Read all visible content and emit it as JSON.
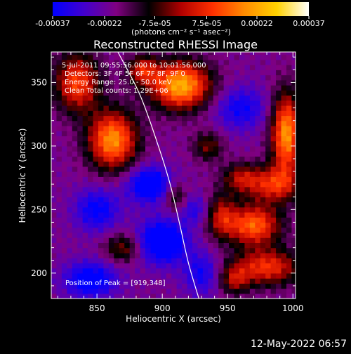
{
  "colorbar": {
    "tick_labels": [
      "-0.00037",
      "-0.00022",
      "-7.5e-05",
      "7.5e-05",
      "0.00022",
      "0.00037"
    ],
    "tick_values": [
      -0.00037,
      -0.00022,
      -7.5e-05,
      7.5e-05,
      0.00022,
      0.00037
    ],
    "range": [
      -0.00037,
      0.00037
    ],
    "units_label": "(photons cm⁻² s⁻¹ asec⁻²)",
    "colors": [
      "#0000ff",
      "#4400cc",
      "#800080",
      "#000000",
      "#b00000",
      "#ff3000",
      "#ff8c00",
      "#ffd200",
      "#ffffff"
    ]
  },
  "chart_data": {
    "type": "heatmap",
    "title": "Reconstructed RHESSI Image",
    "xlabel": "Heliocentric X (arcsec)",
    "ylabel": "Heliocentric Y (arcsec)",
    "xlim": [
      815,
      1002
    ],
    "ylim": [
      180,
      374
    ],
    "x_ticks": [
      850,
      900,
      950,
      1000
    ],
    "y_ticks": [
      200,
      250,
      300,
      350
    ],
    "x_tick_labels": [
      "850",
      "900",
      "950",
      "1000"
    ],
    "y_tick_labels": [
      "200",
      "250",
      "300",
      "350"
    ],
    "annotations": [
      "5-Jul-2011 09:55:56.000 to 10:01:56.000",
      "Detectors: 3F 4F 5F 6F 7F 8F, 9F 0",
      "Energy Range: 25.0 - 50.0 keV",
      "Clean    Total counts: 1.29E+06"
    ],
    "peak_label": "Position of Peak = [919,348]",
    "peak": [
      919,
      348
    ],
    "limb_curve": [
      [
        866,
        374
      ],
      [
        883,
        340
      ],
      [
        897,
        300
      ],
      [
        906,
        270
      ],
      [
        913,
        240
      ],
      [
        920,
        208
      ],
      [
        928,
        180
      ]
    ],
    "blobs": [
      {
        "x": 914,
        "y": 348,
        "sx": 16,
        "sy": 13,
        "v": 0.00037
      },
      {
        "x": 862,
        "y": 305,
        "sx": 13,
        "sy": 16,
        "v": 0.00033
      },
      {
        "x": 835,
        "y": 350,
        "sx": 12,
        "sy": 16,
        "v": 0.00024
      },
      {
        "x": 885,
        "y": 360,
        "sx": 8,
        "sy": 8,
        "v": 0.00017
      },
      {
        "x": 995,
        "y": 310,
        "sx": 8,
        "sy": 22,
        "v": 0.00034
      },
      {
        "x": 985,
        "y": 270,
        "sx": 14,
        "sy": 10,
        "v": 0.0002
      },
      {
        "x": 960,
        "y": 275,
        "sx": 10,
        "sy": 8,
        "v": 0.00013
      },
      {
        "x": 970,
        "y": 238,
        "sx": 14,
        "sy": 11,
        "v": 0.00028
      },
      {
        "x": 945,
        "y": 245,
        "sx": 8,
        "sy": 12,
        "v": 0.00015
      },
      {
        "x": 980,
        "y": 205,
        "sx": 18,
        "sy": 10,
        "v": 0.00022
      },
      {
        "x": 870,
        "y": 220,
        "sx": 10,
        "sy": 8,
        "v": 0.00011
      },
      {
        "x": 935,
        "y": 300,
        "sx": 8,
        "sy": 8,
        "v": 0.0001
      },
      {
        "x": 910,
        "y": 260,
        "sx": 6,
        "sy": 8,
        "v": 8e-05
      },
      {
        "x": 955,
        "y": 195,
        "sx": 8,
        "sy": 8,
        "v": 0.00012
      },
      {
        "x": 890,
        "y": 270,
        "sx": 12,
        "sy": 10,
        "v": -0.00024
      },
      {
        "x": 900,
        "y": 225,
        "sx": 13,
        "sy": 12,
        "v": -0.00028
      },
      {
        "x": 850,
        "y": 250,
        "sx": 12,
        "sy": 12,
        "v": -0.00018
      },
      {
        "x": 845,
        "y": 195,
        "sx": 14,
        "sy": 10,
        "v": -0.00022
      },
      {
        "x": 960,
        "y": 330,
        "sx": 14,
        "sy": 12,
        "v": -0.00016
      },
      {
        "x": 930,
        "y": 200,
        "sx": 10,
        "sy": 12,
        "v": -0.00015
      },
      {
        "x": 925,
        "y": 250,
        "sx": 8,
        "sy": 8,
        "v": -0.00012
      }
    ]
  },
  "footer": {
    "timestamp": "12-May-2022 06:57"
  }
}
